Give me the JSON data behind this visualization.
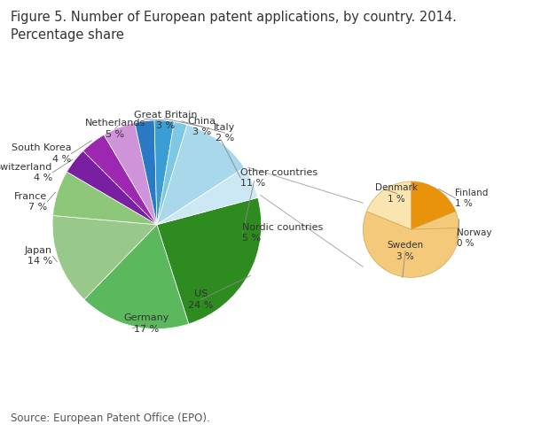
{
  "title": "Figure 5. Number of European patent applications, by country. 2014.\nPercentage share",
  "source": "Source: European Patent Office (EPO).",
  "main_labels": [
    "US",
    "Germany",
    "Japan",
    "France",
    "Switzerland",
    "South Korea",
    "Netherlands",
    "Great Britain",
    "China",
    "Italy",
    "Other countries",
    "Nordic countries"
  ],
  "main_values": [
    24,
    17,
    14,
    7,
    4,
    4,
    5,
    3,
    3,
    2,
    11,
    5
  ],
  "main_colors": [
    "#2e8b20",
    "#5cb85c",
    "#98c98a",
    "#8dc87a",
    "#7b1fa2",
    "#9c27b0",
    "#ce93d8",
    "#2979c5",
    "#3a9dd4",
    "#7ec8e3",
    "#a8d8ea",
    "#cce8f4"
  ],
  "startangle": 90,
  "nordic_labels": [
    "Finland",
    "Norway",
    "Sweden",
    "Denmark"
  ],
  "nordic_values": [
    1,
    0.3,
    3,
    1
  ],
  "nordic_colors": [
    "#e8930a",
    "#f5c97a",
    "#f5c97a",
    "#fae4b0"
  ],
  "nordic_startangle": 90,
  "bg_color": "#ffffff",
  "text_color": "#333333",
  "title_fontsize": 10.5,
  "label_fontsize": 8.0,
  "source_fontsize": 8.5
}
